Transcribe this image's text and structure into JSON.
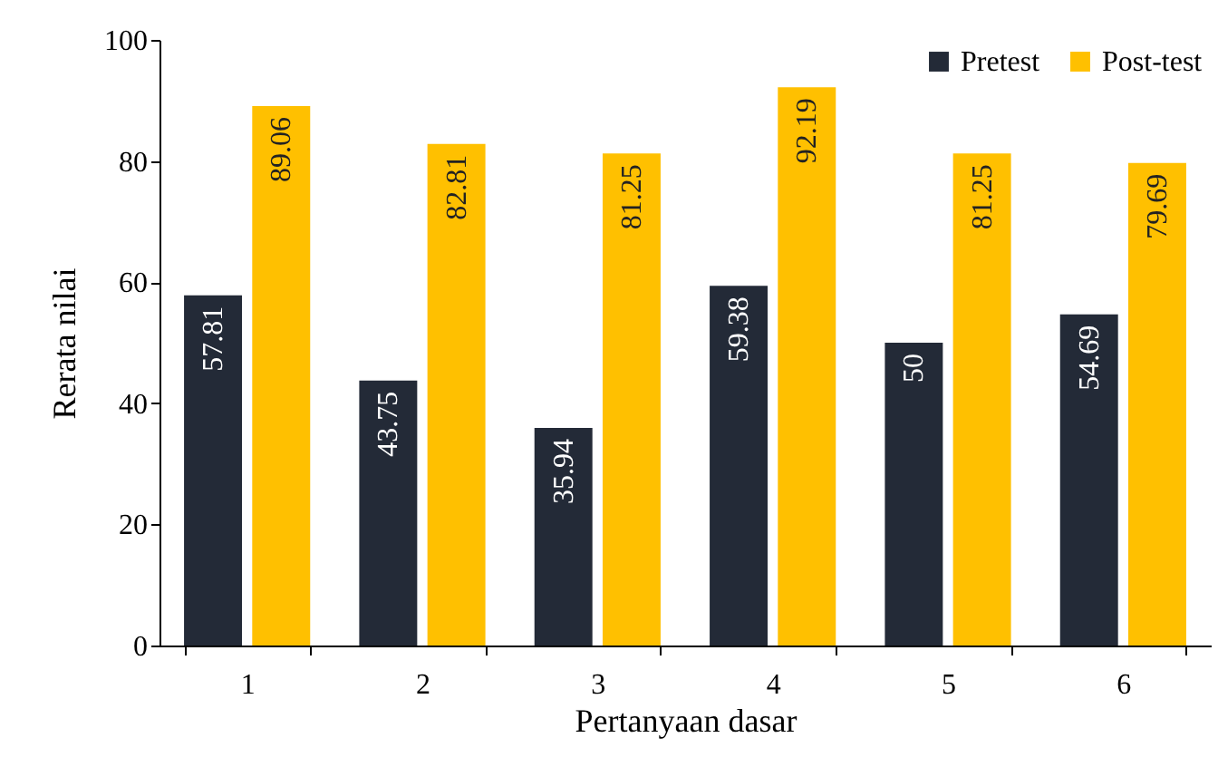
{
  "chart_data": {
    "type": "bar",
    "xlabel": "Pertanyaan dasar",
    "ylabel": "Rerata nilai",
    "categories": [
      "1",
      "2",
      "3",
      "4",
      "5",
      "6"
    ],
    "series": [
      {
        "name": "Pretest",
        "color": "#232a37",
        "values": [
          57.81,
          43.75,
          35.94,
          59.38,
          50,
          54.69
        ]
      },
      {
        "name": "Post-test",
        "color": "#ffc000",
        "values": [
          89.06,
          82.81,
          81.25,
          92.19,
          81.25,
          79.69
        ]
      }
    ],
    "ylim": [
      0,
      100
    ],
    "yticks": [
      0,
      20,
      40,
      60,
      80,
      100
    ],
    "grid": false,
    "legend": "top right",
    "data_labels": true
  }
}
